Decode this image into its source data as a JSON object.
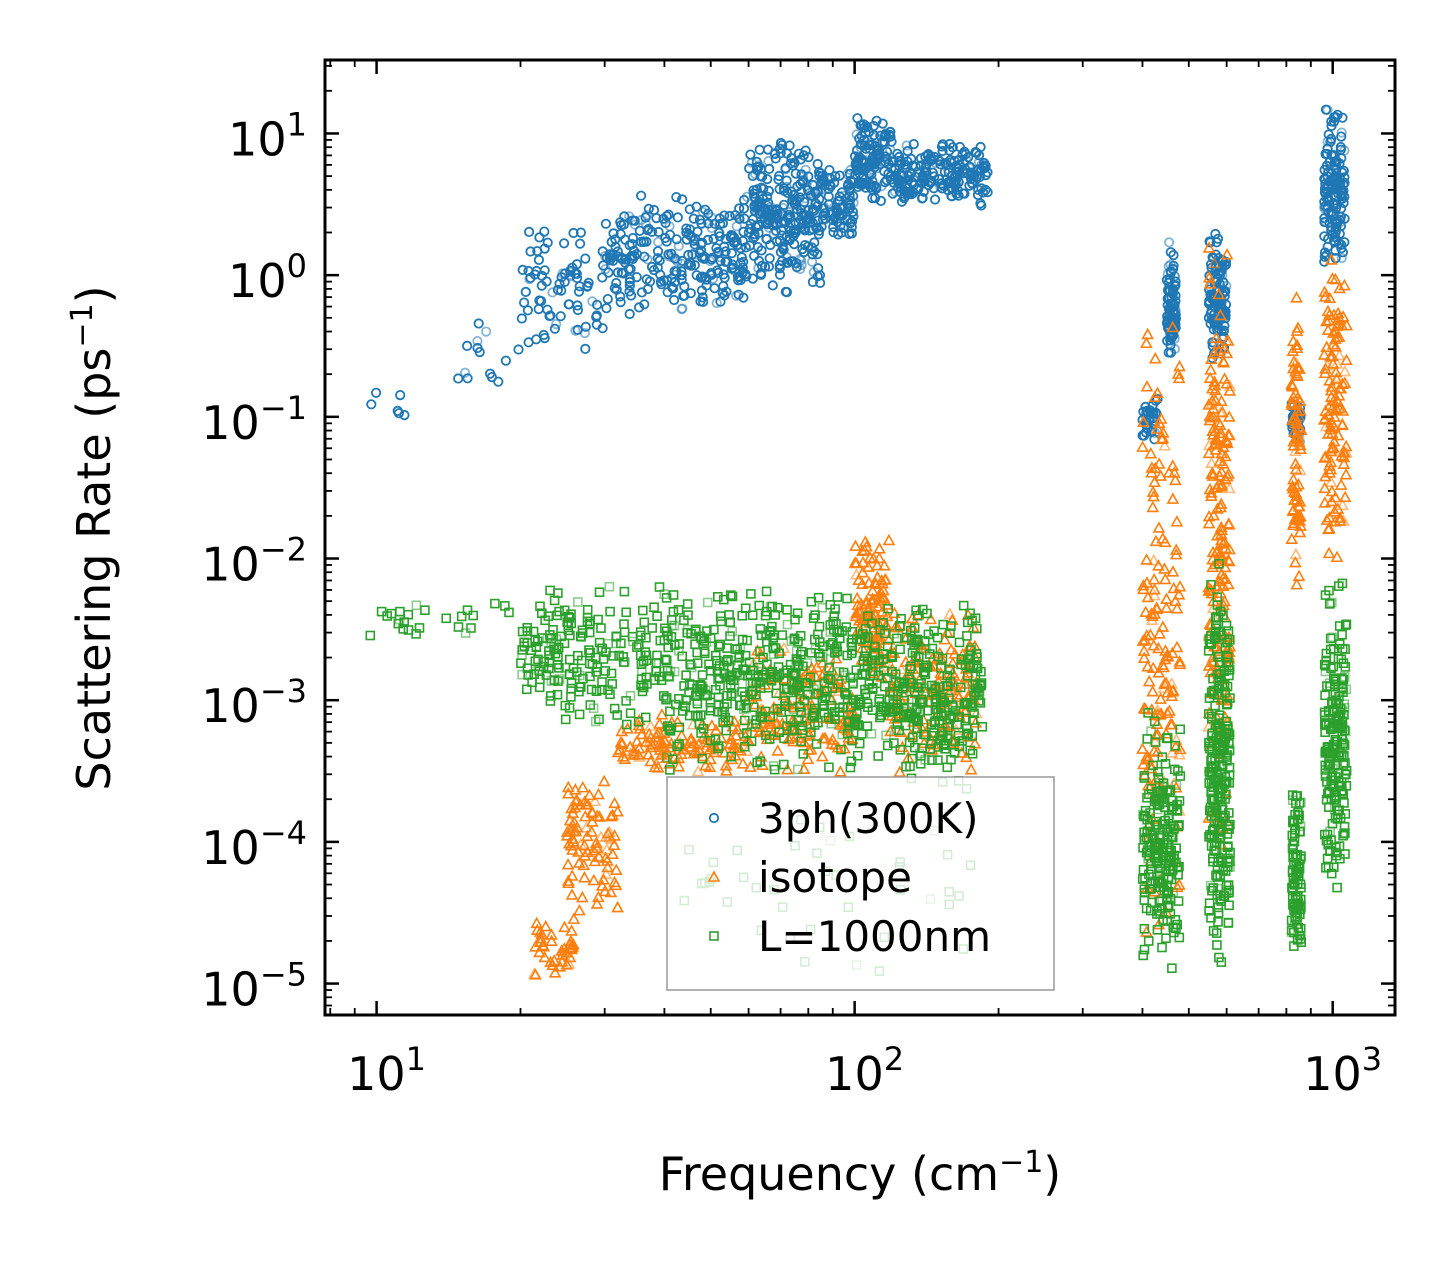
{
  "chart_data": {
    "type": "scatter",
    "title": "",
    "xlabel": "Frequency (cm",
    "xlabel_sup": "−1",
    "xlabel_end": ")",
    "ylabel": "Scattering Rate (ps",
    "ylabel_sup": "−1",
    "ylabel_end": ")",
    "xscale": "log",
    "yscale": "log",
    "xlim": [
      7.8,
      1350
    ],
    "ylim": [
      6e-06,
      33
    ],
    "x_ticks": [
      {
        "value": 10,
        "base": "10",
        "exp": "1"
      },
      {
        "value": 100,
        "base": "10",
        "exp": "2"
      },
      {
        "value": 1000,
        "base": "10",
        "exp": "3"
      }
    ],
    "y_ticks": [
      {
        "value": 10,
        "base": "10",
        "exp": "1"
      },
      {
        "value": 1,
        "base": "10",
        "exp": "0"
      },
      {
        "value": 0.1,
        "base": "10",
        "exp": "−1"
      },
      {
        "value": 0.01,
        "base": "10",
        "exp": "−2"
      },
      {
        "value": 0.001,
        "base": "10",
        "exp": "−3"
      },
      {
        "value": 0.0001,
        "base": "10",
        "exp": "−4"
      },
      {
        "value": 1e-05,
        "base": "10",
        "exp": "−5"
      }
    ],
    "legend_position": "lower-center",
    "series": [
      {
        "name": "3ph(300K)",
        "marker": "circle",
        "color": "#1f77b4",
        "clusters": [
          {
            "x": [
              9.5,
              12
            ],
            "y": [
              0.075,
              0.17
            ],
            "n": 6
          },
          {
            "x": [
              14,
              20
            ],
            "y": [
              0.1,
              0.6
            ],
            "n": 14
          },
          {
            "x": [
              20,
              30
            ],
            "y": [
              0.25,
              2.6
            ],
            "n": 80
          },
          {
            "x": [
              30,
              60
            ],
            "y": [
              0.5,
              4.0
            ],
            "n": 260
          },
          {
            "x": [
              60,
              85
            ],
            "y": [
              0.7,
              10
            ],
            "n": 260
          },
          {
            "x": [
              85,
              100
            ],
            "y": [
              1.5,
              6
            ],
            "n": 80
          },
          {
            "x": [
              100,
              120
            ],
            "y": [
              3,
              14
            ],
            "n": 120
          },
          {
            "x": [
              120,
              190
            ],
            "y": [
              3,
              9
            ],
            "n": 200
          },
          {
            "x": [
              400,
              430
            ],
            "y": [
              0.06,
              0.15
            ],
            "n": 30
          },
          {
            "x": [
              450,
              470
            ],
            "y": [
              0.2,
              2.0
            ],
            "n": 90
          },
          {
            "x": [
              550,
              600
            ],
            "y": [
              0.2,
              2.2
            ],
            "n": 110
          },
          {
            "x": [
              820,
              860
            ],
            "y": [
              0.06,
              0.15
            ],
            "n": 30
          },
          {
            "x": [
              960,
              1060
            ],
            "y": [
              1.0,
              17
            ],
            "n": 150
          }
        ]
      },
      {
        "name": "isotope",
        "marker": "triangle",
        "color": "#ff7f0e",
        "clusters": [
          {
            "x": [
              21,
              26
            ],
            "y": [
              1e-05,
              3e-05
            ],
            "n": 40
          },
          {
            "x": [
              25,
              32
            ],
            "y": [
              3e-05,
              0.0003
            ],
            "n": 90
          },
          {
            "x": [
              32,
              60
            ],
            "y": [
              0.0003,
              0.0008
            ],
            "n": 120
          },
          {
            "x": [
              60,
              100
            ],
            "y": [
              0.0003,
              0.0025
            ],
            "n": 140
          },
          {
            "x": [
              100,
              118
            ],
            "y": [
              0.001,
              0.015
            ],
            "n": 110
          },
          {
            "x": [
              118,
              180
            ],
            "y": [
              0.0003,
              0.005
            ],
            "n": 150
          },
          {
            "x": [
              400,
              480
            ],
            "y": [
              1e-05,
              0.9
            ],
            "n": 160
          },
          {
            "x": [
              550,
              610
            ],
            "y": [
              5e-05,
              2.8
            ],
            "n": 200
          },
          {
            "x": [
              820,
              860
            ],
            "y": [
              0.005,
              1.3
            ],
            "n": 80
          },
          {
            "x": [
              960,
              1070
            ],
            "y": [
              0.005,
              1.8
            ],
            "n": 120
          }
        ]
      },
      {
        "name": "L=1000nm",
        "marker": "square",
        "color": "#2ca02c",
        "clusters": [
          {
            "x": [
              9.5,
              20
            ],
            "y": [
              0.0025,
              0.006
            ],
            "n": 25
          },
          {
            "x": [
              20,
              40
            ],
            "y": [
              0.0006,
              0.007
            ],
            "n": 200
          },
          {
            "x": [
              40,
              100
            ],
            "y": [
              0.0003,
              0.007
            ],
            "n": 420
          },
          {
            "x": [
              100,
              130
            ],
            "y": [
              0.0003,
              0.005
            ],
            "n": 120
          },
          {
            "x": [
              130,
              185
            ],
            "y": [
              0.0002,
              0.006
            ],
            "n": 200
          },
          {
            "x": [
              40,
              180
            ],
            "y": [
              1e-05,
              0.0003
            ],
            "n": 40
          },
          {
            "x": [
              400,
              480
            ],
            "y": [
              1.2e-05,
              0.0009
            ],
            "n": 200
          },
          {
            "x": [
              550,
              610
            ],
            "y": [
              1.2e-05,
              0.01
            ],
            "n": 240
          },
          {
            "x": [
              820,
              860
            ],
            "y": [
              1.4e-05,
              0.0003
            ],
            "n": 90
          },
          {
            "x": [
              960,
              1070
            ],
            "y": [
              4.5e-05,
              0.0075
            ],
            "n": 200
          }
        ]
      }
    ]
  }
}
